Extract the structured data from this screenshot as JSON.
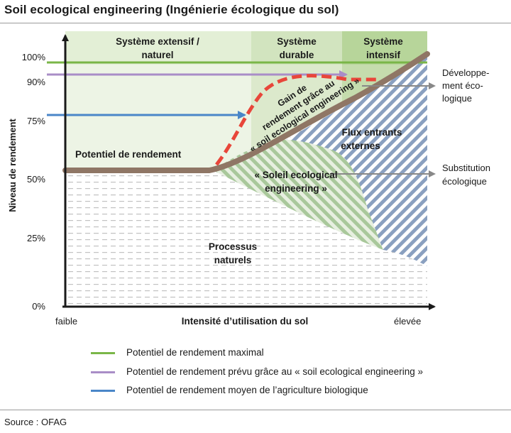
{
  "title": "Soil ecological engineering (Ingénierie écologique du sol)",
  "source": "Source : OFAG",
  "zones": [
    {
      "line1": "Système extensif /",
      "line2": "naturel",
      "color": "#e3efd6"
    },
    {
      "line1": "Système",
      "line2": "durable",
      "color": "#d2e4bf"
    },
    {
      "line1": "Système",
      "line2": "intensif",
      "color": "#b7d59a"
    }
  ],
  "y_axis": {
    "label": "Niveau de rendement",
    "ticks": [
      "100%",
      "90%",
      "75%",
      "50%",
      "25%",
      "0%"
    ]
  },
  "x_axis": {
    "label": "Intensité d’utilisation du sol",
    "low": "faible",
    "high": "élevée"
  },
  "areas": {
    "yield_potential": "Potentiel de rendement",
    "gain": [
      "Gain de",
      "rendement grâce au",
      "« soil ecological engineering »"
    ],
    "soleil": [
      "« Soleil ecological",
      "engineering »"
    ],
    "flux": [
      "Flux entrants",
      "externes"
    ],
    "natural": [
      "Processus",
      "naturels"
    ]
  },
  "right_labels": {
    "eco_dev": [
      "Développe-",
      "ment éco-",
      "logique"
    ],
    "substitution": [
      "Substitution",
      "écologique"
    ]
  },
  "legend": [
    {
      "label": "Potentiel de rendement maximal",
      "color": "#7ab648"
    },
    {
      "label": "Potentiel de rendement prévu grâce au « soil ecological engineering »",
      "color": "#a98dc7"
    },
    {
      "label": "Potentiel de rendement moyen de l’agriculture biologique",
      "color": "#4a86c8"
    }
  ],
  "colors": {
    "yield_curve": "#8f7665",
    "gain_curve": "#e8463a",
    "hatch_blue": "#8aa0c0",
    "hatch_green": "#9fc08f",
    "natural_dash": "#c2c2c2",
    "arrow_grey": "#888888"
  }
}
